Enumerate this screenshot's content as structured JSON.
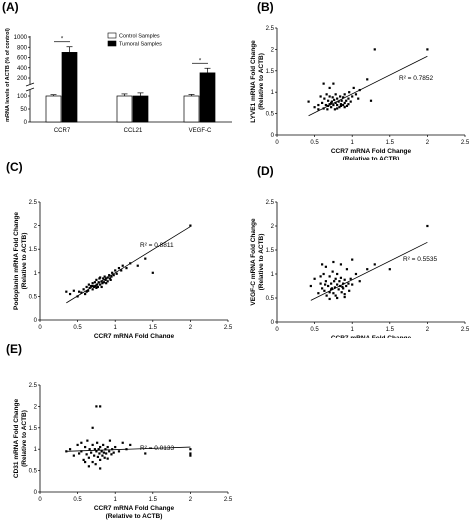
{
  "panel_labels": [
    "(A)",
    "(B)",
    "(C)",
    "(D)",
    "(E)"
  ],
  "chart_data": [
    {
      "panel": "(A)",
      "type": "bar",
      "ylabel": "mRNA levels of ACTB (% of control)",
      "yticks_low": [
        "0",
        "50",
        "100"
      ],
      "yticks_high": [
        "200",
        "400",
        "600",
        "800",
        "1000"
      ],
      "categories": [
        "CCR7",
        "CCL21",
        "VEGF-C"
      ],
      "series": [
        {
          "name": "Control Samples",
          "color": "#ffffff",
          "values": [
            100,
            100,
            100
          ],
          "errors": [
            5,
            8,
            6
          ]
        },
        {
          "name": "Tumoral Samples",
          "color": "#000000",
          "values": [
            700,
            100,
            300
          ],
          "errors": [
            110,
            12,
            90
          ]
        }
      ],
      "significance": [
        "*",
        "",
        "*"
      ],
      "legend_position": "top-right"
    },
    {
      "panel": "(B)",
      "type": "scatter",
      "xlabel": "CCR7 mRNA Fold Change",
      "xlabel2": "(Relative to ACTB)",
      "ylabel": "LYVE1 mRNA Fold Change",
      "ylabel2": "(Relative to ACTB)",
      "xlim": [
        0,
        2.5
      ],
      "ylim": [
        0,
        2.5
      ],
      "xticks": [
        "0",
        "0.5",
        "1",
        "1.5",
        "2",
        "2.5"
      ],
      "yticks": [
        "0",
        "0.5",
        "1",
        "1.5",
        "2",
        "2.5"
      ],
      "r2_label": "R² = 0.7852",
      "fit": {
        "slope": 0.88,
        "intercept": 0.08,
        "x0": 0.42,
        "x1": 2.0
      },
      "points": [
        [
          0.42,
          0.78
        ],
        [
          0.5,
          0.65
        ],
        [
          0.55,
          0.7
        ],
        [
          0.58,
          0.9
        ],
        [
          0.6,
          0.75
        ],
        [
          0.62,
          0.62
        ],
        [
          0.63,
          0.85
        ],
        [
          0.65,
          0.7
        ],
        [
          0.66,
          0.95
        ],
        [
          0.67,
          0.6
        ],
        [
          0.68,
          0.8
        ],
        [
          0.7,
          0.72
        ],
        [
          0.7,
          0.9
        ],
        [
          0.72,
          0.65
        ],
        [
          0.73,
          0.78
        ],
        [
          0.74,
          0.88
        ],
        [
          0.75,
          0.7
        ],
        [
          0.76,
          0.82
        ],
        [
          0.77,
          0.6
        ],
        [
          0.78,
          0.75
        ],
        [
          0.78,
          0.95
        ],
        [
          0.8,
          0.7
        ],
        [
          0.8,
          0.85
        ],
        [
          0.82,
          0.78
        ],
        [
          0.83,
          0.65
        ],
        [
          0.84,
          0.9
        ],
        [
          0.85,
          0.72
        ],
        [
          0.86,
          0.8
        ],
        [
          0.88,
          0.7
        ],
        [
          0.88,
          0.88
        ],
        [
          0.9,
          0.75
        ],
        [
          0.9,
          0.95
        ],
        [
          0.92,
          0.8
        ],
        [
          0.93,
          0.68
        ],
        [
          0.95,
          0.85
        ],
        [
          0.96,
          1.0
        ],
        [
          0.98,
          0.78
        ],
        [
          1.0,
          0.9
        ],
        [
          1.02,
          1.1
        ],
        [
          1.05,
          0.95
        ],
        [
          1.08,
          0.85
        ],
        [
          1.1,
          1.05
        ],
        [
          0.62,
          1.2
        ],
        [
          0.7,
          1.1
        ],
        [
          0.75,
          1.2
        ],
        [
          1.3,
          2.0
        ],
        [
          2.0,
          2.0
        ],
        [
          1.2,
          1.3
        ],
        [
          1.25,
          0.8
        ],
        [
          0.55,
          0.6
        ],
        [
          0.68,
          0.68
        ],
        [
          0.72,
          0.75
        ],
        [
          0.8,
          0.62
        ],
        [
          0.85,
          0.68
        ],
        [
          0.9,
          0.65
        ],
        [
          0.95,
          0.72
        ]
      ]
    },
    {
      "panel": "(C)",
      "type": "scatter",
      "xlabel": "CCR7 mRNA Fold Change",
      "xlabel2": "(Relative to ACTB)",
      "ylabel": "Podoplanin mRNA Fold Change",
      "ylabel2": "(Relative to ACTB)",
      "xlim": [
        0,
        2.5
      ],
      "ylim": [
        0,
        2.5
      ],
      "xticks": [
        "0",
        "0.5",
        "1",
        "1.5",
        "2",
        "2.5"
      ],
      "yticks": [
        "0",
        "0.5",
        "1",
        "1.5",
        "2",
        "2.5"
      ],
      "r2_label": "R² = 0.8811",
      "fit": {
        "slope": 0.98,
        "intercept": 0.02,
        "x0": 0.35,
        "x1": 2.0
      },
      "points": [
        [
          0.35,
          0.6
        ],
        [
          0.4,
          0.55
        ],
        [
          0.45,
          0.62
        ],
        [
          0.5,
          0.5
        ],
        [
          0.52,
          0.6
        ],
        [
          0.55,
          0.58
        ],
        [
          0.58,
          0.65
        ],
        [
          0.6,
          0.55
        ],
        [
          0.62,
          0.7
        ],
        [
          0.64,
          0.62
        ],
        [
          0.65,
          0.75
        ],
        [
          0.66,
          0.68
        ],
        [
          0.68,
          0.72
        ],
        [
          0.7,
          0.65
        ],
        [
          0.7,
          0.78
        ],
        [
          0.72,
          0.7
        ],
        [
          0.73,
          0.8
        ],
        [
          0.74,
          0.72
        ],
        [
          0.75,
          0.85
        ],
        [
          0.76,
          0.75
        ],
        [
          0.77,
          0.7
        ],
        [
          0.78,
          0.8
        ],
        [
          0.79,
          0.88
        ],
        [
          0.8,
          0.75
        ],
        [
          0.8,
          0.9
        ],
        [
          0.82,
          0.82
        ],
        [
          0.83,
          0.78
        ],
        [
          0.84,
          0.88
        ],
        [
          0.85,
          0.8
        ],
        [
          0.86,
          0.92
        ],
        [
          0.87,
          0.85
        ],
        [
          0.88,
          0.78
        ],
        [
          0.9,
          0.9
        ],
        [
          0.9,
          0.82
        ],
        [
          0.92,
          0.95
        ],
        [
          0.93,
          0.88
        ],
        [
          0.95,
          0.92
        ],
        [
          0.96,
          1.0
        ],
        [
          0.98,
          0.95
        ],
        [
          1.0,
          1.05
        ],
        [
          1.02,
          0.98
        ],
        [
          1.05,
          1.1
        ],
        [
          1.08,
          1.05
        ],
        [
          1.1,
          1.15
        ],
        [
          1.15,
          1.1
        ],
        [
          1.2,
          1.2
        ],
        [
          1.3,
          1.15
        ],
        [
          1.4,
          1.3
        ],
        [
          1.5,
          1.0
        ],
        [
          2.0,
          2.0
        ],
        [
          0.62,
          0.6
        ],
        [
          0.7,
          0.72
        ],
        [
          0.75,
          0.68
        ],
        [
          0.82,
          0.7
        ],
        [
          0.88,
          0.88
        ],
        [
          0.94,
          0.85
        ]
      ]
    },
    {
      "panel": "(D)",
      "type": "scatter",
      "xlabel": "CCR7 mRNA Fold Change",
      "xlabel2": "(Relative to ACTB)",
      "ylabel": "VEGF-C mRNA Fold Change",
      "ylabel2": "(Relative to ACTB)",
      "xlim": [
        0,
        2.5
      ],
      "ylim": [
        0,
        2.5
      ],
      "xticks": [
        "0",
        "0.5",
        "1",
        "1.5",
        "2",
        "2.5"
      ],
      "yticks": [
        "0",
        "0.5",
        "1",
        "1.5",
        "2",
        "2.5"
      ],
      "r2_label": "R² = 0.5535",
      "fit": {
        "slope": 0.78,
        "intercept": 0.1,
        "x0": 0.45,
        "x1": 2.0
      },
      "points": [
        [
          0.45,
          0.75
        ],
        [
          0.5,
          0.9
        ],
        [
          0.55,
          0.6
        ],
        [
          0.58,
          0.8
        ],
        [
          0.6,
          0.7
        ],
        [
          0.62,
          1.0
        ],
        [
          0.63,
          0.65
        ],
        [
          0.65,
          0.85
        ],
        [
          0.66,
          0.55
        ],
        [
          0.68,
          0.75
        ],
        [
          0.7,
          0.95
        ],
        [
          0.7,
          0.62
        ],
        [
          0.72,
          0.8
        ],
        [
          0.73,
          0.7
        ],
        [
          0.74,
          1.05
        ],
        [
          0.75,
          0.6
        ],
        [
          0.76,
          0.85
        ],
        [
          0.77,
          0.72
        ],
        [
          0.78,
          0.9
        ],
        [
          0.78,
          0.55
        ],
        [
          0.8,
          0.78
        ],
        [
          0.8,
          1.0
        ],
        [
          0.82,
          0.68
        ],
        [
          0.83,
          0.85
        ],
        [
          0.84,
          0.75
        ],
        [
          0.85,
          0.92
        ],
        [
          0.86,
          0.62
        ],
        [
          0.88,
          0.8
        ],
        [
          0.88,
          0.7
        ],
        [
          0.9,
          0.88
        ],
        [
          0.9,
          0.58
        ],
        [
          0.92,
          0.75
        ],
        [
          0.93,
          1.1
        ],
        [
          0.95,
          0.8
        ],
        [
          0.96,
          0.65
        ],
        [
          0.98,
          0.9
        ],
        [
          1.0,
          0.78
        ],
        [
          1.05,
          1.0
        ],
        [
          1.1,
          0.85
        ],
        [
          1.2,
          1.1
        ],
        [
          1.3,
          1.2
        ],
        [
          0.6,
          1.2
        ],
        [
          0.65,
          1.15
        ],
        [
          0.75,
          1.25
        ],
        [
          0.85,
          1.2
        ],
        [
          1.0,
          1.3
        ],
        [
          2.0,
          2.0
        ],
        [
          1.5,
          1.1
        ],
        [
          0.7,
          0.48
        ],
        [
          0.8,
          0.5
        ],
        [
          0.9,
          0.52
        ],
        [
          0.58,
          0.95
        ],
        [
          0.64,
          0.78
        ],
        [
          0.72,
          0.68
        ],
        [
          0.87,
          0.73
        ]
      ]
    },
    {
      "panel": "(E)",
      "type": "scatter",
      "xlabel": "CCR7 mRNA Fold Change",
      "xlabel2": "(Relative to ACTB)",
      "ylabel": "CD31 mRNA Fold Change",
      "ylabel2": "(Relative to ACTB)",
      "xlim": [
        0,
        2.5
      ],
      "ylim": [
        0,
        2.5
      ],
      "xticks": [
        "0",
        "0.5",
        "1",
        "1.5",
        "2",
        "2.5"
      ],
      "yticks": [
        "0",
        "0.5",
        "1",
        "1.5",
        "2",
        "2.5"
      ],
      "r2_label": "R² = 0.0133",
      "fit": {
        "slope": 0.06,
        "intercept": 0.93,
        "x0": 0.35,
        "x1": 2.0
      },
      "points": [
        [
          0.35,
          0.95
        ],
        [
          0.4,
          1.0
        ],
        [
          0.45,
          0.85
        ],
        [
          0.5,
          1.1
        ],
        [
          0.52,
          0.9
        ],
        [
          0.55,
          0.95
        ],
        [
          0.58,
          0.75
        ],
        [
          0.6,
          1.05
        ],
        [
          0.62,
          0.88
        ],
        [
          0.63,
          1.2
        ],
        [
          0.65,
          0.8
        ],
        [
          0.66,
          1.0
        ],
        [
          0.68,
          0.92
        ],
        [
          0.7,
          0.7
        ],
        [
          0.7,
          1.1
        ],
        [
          0.72,
          0.85
        ],
        [
          0.73,
          1.0
        ],
        [
          0.74,
          0.65
        ],
        [
          0.75,
          0.95
        ],
        [
          0.76,
          1.15
        ],
        [
          0.77,
          0.82
        ],
        [
          0.78,
          1.0
        ],
        [
          0.79,
          0.9
        ],
        [
          0.8,
          0.75
        ],
        [
          0.8,
          1.05
        ],
        [
          0.82,
          0.95
        ],
        [
          0.83,
          0.85
        ],
        [
          0.84,
          1.1
        ],
        [
          0.85,
          0.92
        ],
        [
          0.86,
          0.8
        ],
        [
          0.87,
          1.0
        ],
        [
          0.88,
          0.9
        ],
        [
          0.9,
          1.05
        ],
        [
          0.9,
          0.78
        ],
        [
          0.92,
          0.95
        ],
        [
          0.93,
          1.2
        ],
        [
          0.95,
          0.88
        ],
        [
          0.96,
          1.0
        ],
        [
          0.98,
          0.92
        ],
        [
          1.0,
          1.05
        ],
        [
          1.05,
          0.95
        ],
        [
          1.1,
          1.15
        ],
        [
          1.15,
          1.0
        ],
        [
          1.2,
          1.1
        ],
        [
          0.75,
          2.0
        ],
        [
          0.8,
          2.0
        ],
        [
          0.7,
          1.5
        ],
        [
          0.65,
          0.6
        ],
        [
          0.8,
          0.55
        ],
        [
          1.4,
          0.9
        ],
        [
          2.0,
          1.0
        ],
        [
          2.0,
          0.9
        ],
        [
          2.0,
          0.85
        ],
        [
          0.55,
          1.15
        ],
        [
          0.6,
          0.7
        ]
      ]
    }
  ]
}
